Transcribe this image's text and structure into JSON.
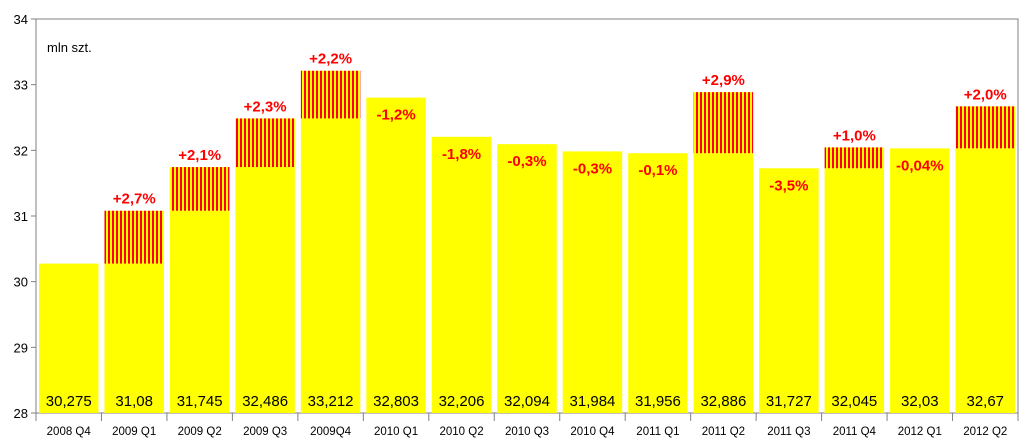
{
  "chart_data": {
    "type": "bar",
    "unit_label": "mln szt.",
    "ylim": [
      28,
      34
    ],
    "y_ticks": [
      "28",
      "29",
      "30",
      "31",
      "32",
      "33",
      "34"
    ],
    "grid": false,
    "categories": [
      "2008 Q4",
      "2009 Q1",
      "2009 Q2",
      "2009 Q3",
      "2009Q4",
      "2010 Q1",
      "2010 Q2",
      "2010 Q3",
      "2010 Q4",
      "2011 Q1",
      "2011 Q2",
      "2011 Q3",
      "2011 Q4",
      "2012 Q1",
      "2012 Q2"
    ],
    "values": [
      30.275,
      31.08,
      31.745,
      32.486,
      33.212,
      32.803,
      32.206,
      32.094,
      31.984,
      31.956,
      32.886,
      31.727,
      32.045,
      32.03,
      32.67
    ],
    "value_labels": [
      "30,275",
      "31,08",
      "31,745",
      "32,486",
      "33,212",
      "32,803",
      "32,206",
      "32,094",
      "31,984",
      "31,956",
      "32,886",
      "31,727",
      "32,045",
      "32,03",
      "32,67"
    ],
    "change_labels": [
      "",
      "+2,7%",
      "+2,1%",
      "+2,3%",
      "+2,2%",
      "-1,2%",
      "-1,8%",
      "-0,3%",
      "-0,3%",
      "-0,1%",
      "+2,9%",
      "-3,5%",
      "+1,0%",
      "-0,04%",
      "+2,0%"
    ],
    "colors": {
      "bar_fill": "#ffff00",
      "increase_stripe": "#ff0000",
      "change_text": "#ff0000",
      "frame": "#808080"
    }
  }
}
